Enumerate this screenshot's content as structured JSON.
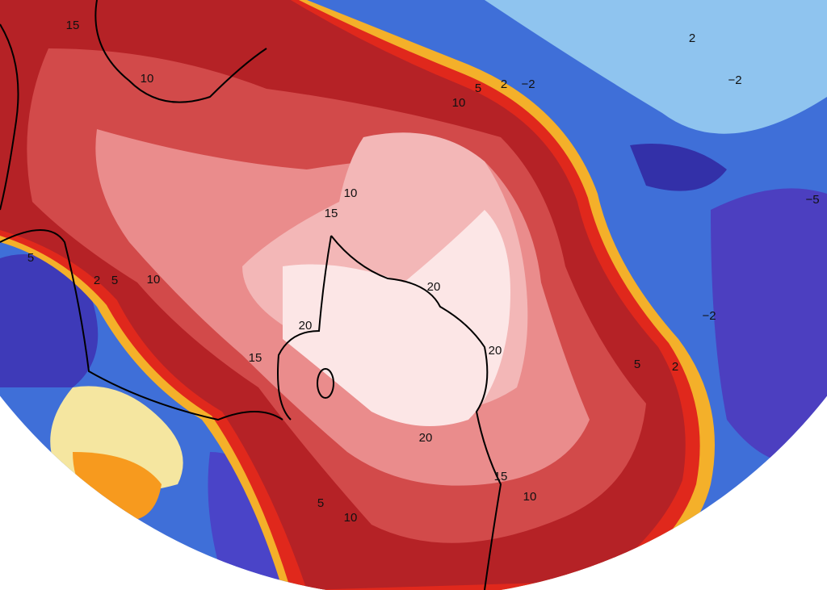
{
  "contour_labels": [
    "15",
    "10",
    "10",
    "5",
    "2",
    "−2",
    "2",
    "−2",
    "10",
    "15",
    "−5",
    "5",
    "2",
    "5",
    "10",
    "20",
    "20",
    "20",
    "15",
    "−2",
    "5",
    "2",
    "20",
    "15",
    "10",
    "5",
    "10"
  ]
}
